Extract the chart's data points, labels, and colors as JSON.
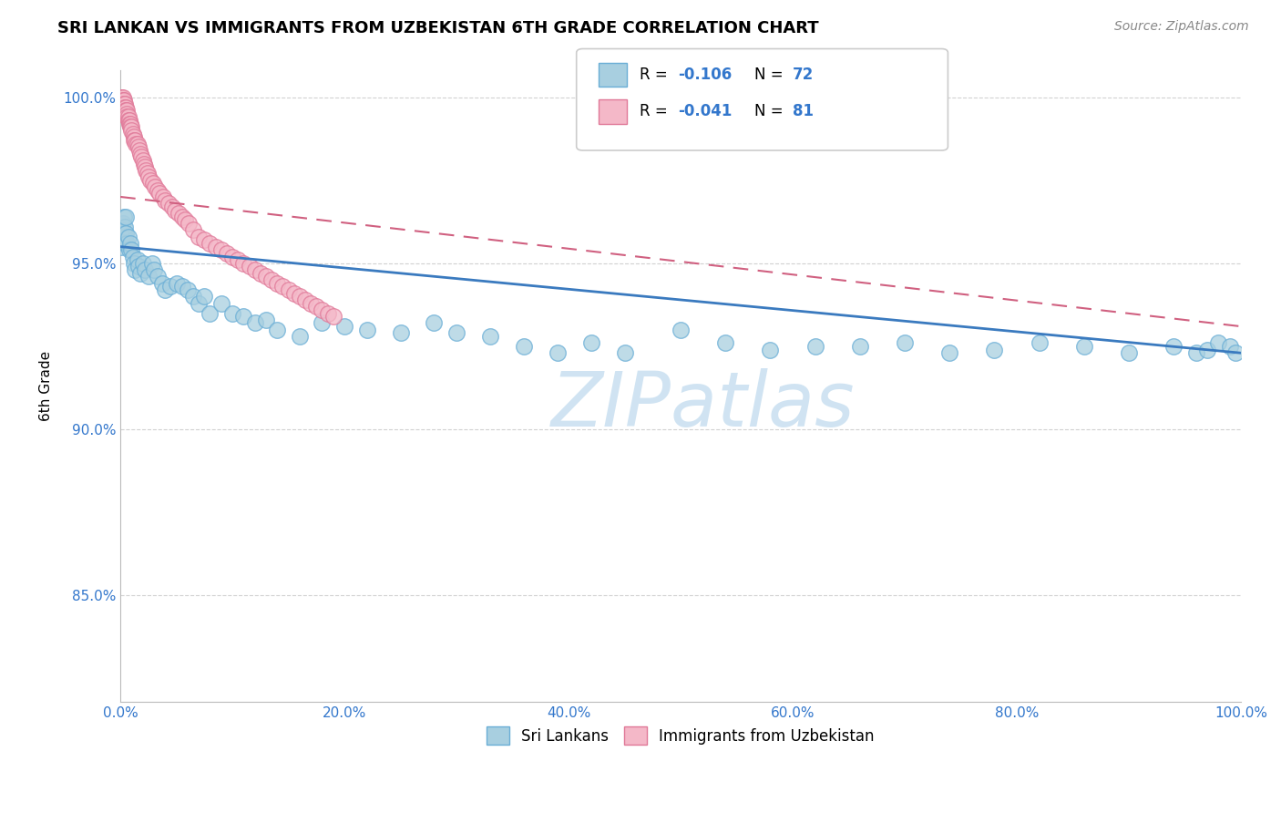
{
  "title": "SRI LANKAN VS IMMIGRANTS FROM UZBEKISTAN 6TH GRADE CORRELATION CHART",
  "source_text": "Source: ZipAtlas.com",
  "ylabel": "6th Grade",
  "blue_color": "#a8cfe0",
  "blue_edge_color": "#6aaed6",
  "pink_color": "#f4b8c8",
  "pink_edge_color": "#e07898",
  "blue_line_color": "#3a7abf",
  "pink_line_color": "#d06080",
  "watermark_color": "#c8dff0",
  "xlim": [
    0.0,
    1.0
  ],
  "ylim": [
    0.818,
    1.008
  ],
  "x_ticks": [
    0.0,
    0.1,
    0.2,
    0.3,
    0.4,
    0.5,
    0.6,
    0.7,
    0.8,
    0.9,
    1.0
  ],
  "x_tick_labels": [
    "0.0%",
    "",
    "20.0%",
    "",
    "40.0%",
    "",
    "60.0%",
    "",
    "80.0%",
    "",
    "100.0%"
  ],
  "y_ticks": [
    0.85,
    0.9,
    0.95,
    1.0
  ],
  "y_tick_labels": [
    "85.0%",
    "90.0%",
    "95.0%",
    "100.0%"
  ],
  "blue_trend": [
    0.955,
    0.923
  ],
  "pink_trend": [
    0.97,
    0.931
  ],
  "blue_scatter_x": [
    0.001,
    0.001,
    0.002,
    0.002,
    0.003,
    0.003,
    0.004,
    0.004,
    0.005,
    0.005,
    0.006,
    0.007,
    0.008,
    0.009,
    0.01,
    0.011,
    0.012,
    0.013,
    0.015,
    0.016,
    0.018,
    0.02,
    0.022,
    0.025,
    0.028,
    0.03,
    0.033,
    0.037,
    0.04,
    0.045,
    0.05,
    0.055,
    0.06,
    0.065,
    0.07,
    0.075,
    0.08,
    0.09,
    0.1,
    0.11,
    0.12,
    0.13,
    0.14,
    0.16,
    0.18,
    0.2,
    0.22,
    0.25,
    0.28,
    0.3,
    0.33,
    0.36,
    0.39,
    0.42,
    0.45,
    0.5,
    0.54,
    0.58,
    0.62,
    0.66,
    0.7,
    0.74,
    0.78,
    0.82,
    0.86,
    0.9,
    0.94,
    0.96,
    0.97,
    0.98,
    0.99,
    0.995
  ],
  "blue_scatter_y": [
    0.96,
    0.955,
    0.958,
    0.962,
    0.964,
    0.959,
    0.956,
    0.961,
    0.959,
    0.964,
    0.956,
    0.958,
    0.954,
    0.956,
    0.954,
    0.952,
    0.95,
    0.948,
    0.951,
    0.949,
    0.947,
    0.95,
    0.948,
    0.946,
    0.95,
    0.948,
    0.946,
    0.944,
    0.942,
    0.943,
    0.944,
    0.943,
    0.942,
    0.94,
    0.938,
    0.94,
    0.935,
    0.938,
    0.935,
    0.934,
    0.932,
    0.933,
    0.93,
    0.928,
    0.932,
    0.931,
    0.93,
    0.929,
    0.932,
    0.929,
    0.928,
    0.925,
    0.923,
    0.926,
    0.923,
    0.93,
    0.926,
    0.924,
    0.925,
    0.925,
    0.926,
    0.923,
    0.924,
    0.926,
    0.925,
    0.923,
    0.925,
    0.923,
    0.924,
    0.926,
    0.925,
    0.923
  ],
  "pink_scatter_x": [
    0.001,
    0.001,
    0.001,
    0.002,
    0.002,
    0.002,
    0.003,
    0.003,
    0.003,
    0.004,
    0.004,
    0.004,
    0.005,
    0.005,
    0.006,
    0.006,
    0.006,
    0.007,
    0.007,
    0.008,
    0.008,
    0.009,
    0.009,
    0.01,
    0.01,
    0.011,
    0.012,
    0.012,
    0.013,
    0.014,
    0.015,
    0.016,
    0.017,
    0.018,
    0.019,
    0.02,
    0.021,
    0.022,
    0.023,
    0.024,
    0.025,
    0.027,
    0.029,
    0.031,
    0.033,
    0.035,
    0.038,
    0.04,
    0.043,
    0.046,
    0.049,
    0.052,
    0.055,
    0.058,
    0.061,
    0.065,
    0.07,
    0.075,
    0.08,
    0.085,
    0.09,
    0.095,
    0.1,
    0.105,
    0.11,
    0.115,
    0.12,
    0.125,
    0.13,
    0.135,
    0.14,
    0.145,
    0.15,
    0.155,
    0.16,
    0.165,
    0.17,
    0.175,
    0.18,
    0.185,
    0.19
  ],
  "pink_scatter_y": [
    1.0,
    1.0,
    0.999,
    1.0,
    0.999,
    0.998,
    0.999,
    0.998,
    0.997,
    0.998,
    0.997,
    0.996,
    0.997,
    0.996,
    0.996,
    0.995,
    0.994,
    0.994,
    0.993,
    0.993,
    0.992,
    0.992,
    0.991,
    0.991,
    0.99,
    0.989,
    0.988,
    0.987,
    0.987,
    0.986,
    0.986,
    0.985,
    0.984,
    0.983,
    0.982,
    0.981,
    0.98,
    0.979,
    0.978,
    0.977,
    0.976,
    0.975,
    0.974,
    0.973,
    0.972,
    0.971,
    0.97,
    0.969,
    0.968,
    0.967,
    0.966,
    0.965,
    0.964,
    0.963,
    0.962,
    0.96,
    0.958,
    0.957,
    0.956,
    0.955,
    0.954,
    0.953,
    0.952,
    0.951,
    0.95,
    0.949,
    0.948,
    0.947,
    0.946,
    0.945,
    0.944,
    0.943,
    0.942,
    0.941,
    0.94,
    0.939,
    0.938,
    0.937,
    0.936,
    0.935,
    0.934
  ]
}
